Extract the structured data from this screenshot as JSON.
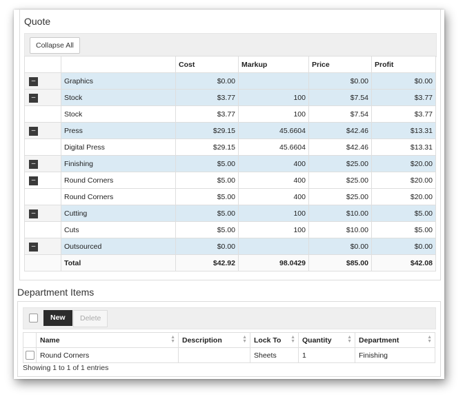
{
  "quote": {
    "title": "Quote",
    "collapse_label": "Collapse All",
    "toggle_symbol": "–",
    "columns": [
      "",
      "",
      "Cost",
      "Markup",
      "Price",
      "Profit"
    ],
    "rows": [
      {
        "name": "Graphics",
        "cost": "$0.00",
        "markup": "",
        "price": "$0.00",
        "profit": "$0.00"
      },
      {
        "name": "Stock",
        "cost": "$3.77",
        "markup": "100",
        "price": "$7.54",
        "profit": "$3.77"
      },
      {
        "name": "Stock",
        "cost": "$3.77",
        "markup": "100",
        "price": "$7.54",
        "profit": "$3.77"
      },
      {
        "name": "Press",
        "cost": "$29.15",
        "markup": "45.6604",
        "price": "$42.46",
        "profit": "$13.31"
      },
      {
        "name": "Digital Press",
        "cost": "$29.15",
        "markup": "45.6604",
        "price": "$42.46",
        "profit": "$13.31"
      },
      {
        "name": "Finishing",
        "cost": "$5.00",
        "markup": "400",
        "price": "$25.00",
        "profit": "$20.00"
      },
      {
        "name": "Round Corners",
        "cost": "$5.00",
        "markup": "400",
        "price": "$25.00",
        "profit": "$20.00"
      },
      {
        "name": "Round Corners",
        "cost": "$5.00",
        "markup": "400",
        "price": "$25.00",
        "profit": "$20.00"
      },
      {
        "name": "Cutting",
        "cost": "$5.00",
        "markup": "100",
        "price": "$10.00",
        "profit": "$5.00"
      },
      {
        "name": "Cuts",
        "cost": "$5.00",
        "markup": "100",
        "price": "$10.00",
        "profit": "$5.00"
      },
      {
        "name": "Outsourced",
        "cost": "$0.00",
        "markup": "",
        "price": "$0.00",
        "profit": "$0.00"
      }
    ],
    "total": {
      "name": "Total",
      "cost": "$42.92",
      "markup": "98.0429",
      "price": "$85.00",
      "profit": "$42.08"
    }
  },
  "department": {
    "title": "Department Items",
    "new_label": "New",
    "delete_label": "Delete",
    "columns": [
      "Name",
      "Description",
      "Lock To",
      "Quantity",
      "Department"
    ],
    "rows": [
      {
        "name": "Round Corners",
        "description": "",
        "lock_to": "Sheets",
        "quantity": "1",
        "department": "Finishing"
      }
    ],
    "showing": "Showing 1 to 1 of 1 entries"
  },
  "colors": {
    "row_highlight": "#daeaf4",
    "toggle_bg": "#3a3a3a",
    "new_button": "#2c2c2c"
  }
}
